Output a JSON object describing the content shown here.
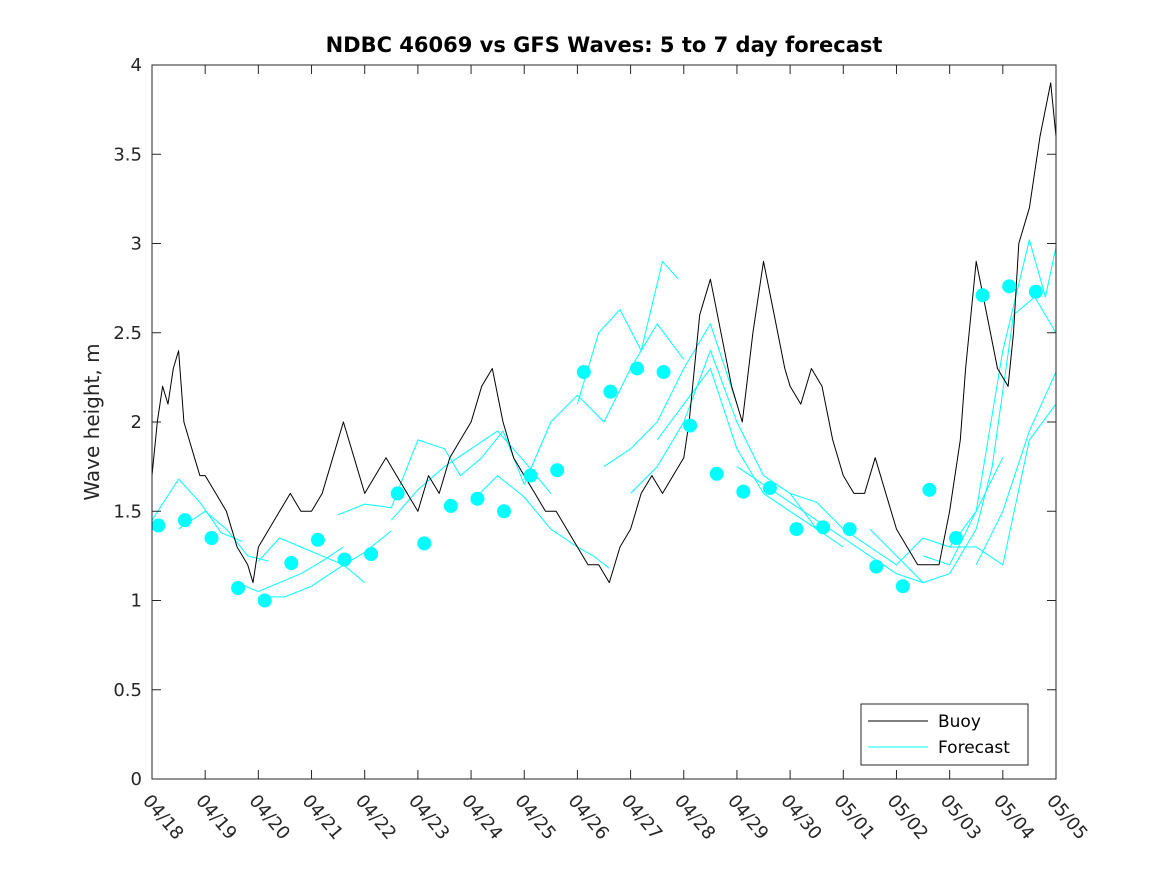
{
  "chart_data": {
    "type": "line",
    "title": "NDBC 46069 vs GFS Waves: 5 to 7 day forecast",
    "xlabel": "",
    "ylabel": "Wave height, m",
    "x_tick_labels": [
      "04/18",
      "04/19",
      "04/20",
      "04/21",
      "04/22",
      "04/23",
      "04/24",
      "04/25",
      "04/26",
      "04/27",
      "04/28",
      "04/29",
      "04/30",
      "05/01",
      "05/02",
      "05/03",
      "05/04",
      "05/05"
    ],
    "xlim_days": [
      0,
      17
    ],
    "ylim": [
      0,
      4
    ],
    "y_ticks": [
      0,
      0.5,
      1,
      1.5,
      2,
      2.5,
      3,
      3.5,
      4
    ],
    "y_tick_labels": [
      "0",
      "0.5",
      "1",
      "1.5",
      "2",
      "2.5",
      "3",
      "3.5",
      "4"
    ],
    "grid": false,
    "legend_position": "bottom-right",
    "colors": {
      "buoy": "#000000",
      "forecast": "#00ffff"
    },
    "series": [
      {
        "name": "Buoy",
        "style": "line",
        "x": [
          0,
          0.1,
          0.2,
          0.3,
          0.4,
          0.5,
          0.6,
          0.7,
          0.8,
          0.9,
          1.0,
          1.2,
          1.4,
          1.6,
          1.8,
          1.9,
          2.0,
          2.2,
          2.4,
          2.6,
          2.8,
          3.0,
          3.2,
          3.4,
          3.6,
          3.8,
          4.0,
          4.2,
          4.4,
          4.6,
          4.8,
          5.0,
          5.2,
          5.4,
          5.6,
          5.8,
          6.0,
          6.2,
          6.4,
          6.6,
          6.8,
          7.0,
          7.2,
          7.4,
          7.6,
          7.8,
          8.0,
          8.2,
          8.4,
          8.6,
          8.8,
          9.0,
          9.2,
          9.4,
          9.6,
          9.8,
          10.0,
          10.1,
          10.2,
          10.3,
          10.5,
          10.7,
          10.9,
          11.1,
          11.3,
          11.5,
          11.7,
          11.9,
          12.0,
          12.2,
          12.4,
          12.6,
          12.8,
          13.0,
          13.2,
          13.4,
          13.6,
          13.8,
          14.0,
          14.2,
          14.4,
          14.6,
          14.8,
          15.0,
          15.2,
          15.3,
          15.5,
          15.7,
          15.9,
          16.1,
          16.2,
          16.3
        ],
        "y": [
          1.7,
          2.0,
          2.2,
          2.1,
          2.3,
          2.4,
          2.0,
          1.9,
          1.8,
          1.7,
          1.7,
          1.6,
          1.5,
          1.3,
          1.2,
          1.1,
          1.3,
          1.4,
          1.5,
          1.6,
          1.5,
          1.5,
          1.6,
          1.8,
          2.0,
          1.8,
          1.6,
          1.7,
          1.8,
          1.7,
          1.6,
          1.5,
          1.7,
          1.6,
          1.8,
          1.9,
          2.0,
          2.2,
          2.3,
          2.0,
          1.8,
          1.7,
          1.6,
          1.5,
          1.5,
          1.4,
          1.3,
          1.2,
          1.2,
          1.1,
          1.3,
          1.4,
          1.6,
          1.7,
          1.6,
          1.7,
          1.8,
          2.0,
          2.3,
          2.6,
          2.8,
          2.5,
          2.2,
          2.0,
          2.5,
          2.9,
          2.6,
          2.3,
          2.2,
          2.1,
          2.3,
          2.2,
          1.9,
          1.7,
          1.6,
          1.6,
          1.8,
          1.6,
          1.4,
          1.3,
          1.2,
          1.2,
          1.2,
          1.5,
          1.9,
          2.3,
          2.9,
          2.6,
          2.3,
          2.2,
          2.5,
          3.0
        ]
      },
      {
        "name": "Buoy",
        "style": "line",
        "x": [
          16.3,
          16.5,
          16.7,
          16.9,
          17.0
        ],
        "y": [
          3.0,
          3.2,
          3.6,
          3.9,
          3.6
        ]
      },
      {
        "name": "Forecast",
        "style": "line",
        "x": [
          0.0,
          0.5,
          0.9,
          1.3,
          1.7
        ],
        "y": [
          1.45,
          1.68,
          1.55,
          1.38,
          1.33
        ]
      },
      {
        "name": "Forecast",
        "style": "line",
        "x": [
          0.5,
          1.0,
          1.4,
          1.8,
          2.2
        ],
        "y": [
          1.4,
          1.5,
          1.4,
          1.25,
          1.22
        ]
      },
      {
        "name": "Forecast",
        "style": "line",
        "x": [
          1.6,
          2.0,
          2.4,
          2.8,
          3.2,
          3.6
        ],
        "y": [
          1.1,
          1.05,
          1.1,
          1.15,
          1.22,
          1.3
        ]
      },
      {
        "name": "Forecast",
        "style": "line",
        "x": [
          2.0,
          2.4,
          2.8,
          3.2,
          3.6,
          4.0
        ],
        "y": [
          1.22,
          1.35,
          1.3,
          1.25,
          1.2,
          1.1
        ]
      },
      {
        "name": "Forecast",
        "style": "line",
        "x": [
          2.0,
          2.5,
          3.0,
          3.5,
          4.0,
          4.5
        ],
        "y": [
          1.02,
          1.02,
          1.08,
          1.18,
          1.27,
          1.39
        ]
      },
      {
        "name": "Forecast",
        "style": "line",
        "x": [
          3.5,
          4.0,
          4.5,
          5.0,
          5.5,
          5.8,
          6.2,
          6.6,
          7.0
        ],
        "y": [
          1.48,
          1.54,
          1.52,
          1.9,
          1.85,
          1.7,
          1.8,
          1.95,
          1.65
        ]
      },
      {
        "name": "Forecast",
        "style": "line",
        "x": [
          4.5,
          5.0,
          5.5,
          6.0,
          6.5,
          7.0,
          7.5
        ],
        "y": [
          1.45,
          1.62,
          1.75,
          1.85,
          1.95,
          1.78,
          1.6
        ]
      },
      {
        "name": "Forecast",
        "style": "line",
        "x": [
          6.0,
          6.5,
          7.0,
          7.5,
          8.0,
          8.3,
          8.6
        ],
        "y": [
          1.55,
          1.7,
          1.58,
          1.4,
          1.3,
          1.25,
          1.18
        ]
      },
      {
        "name": "Forecast",
        "style": "line",
        "x": [
          7.0,
          7.5,
          8.0,
          8.5,
          9.0,
          9.5,
          10.0
        ],
        "y": [
          1.65,
          2.0,
          2.15,
          2.0,
          2.3,
          2.55,
          2.35
        ]
      },
      {
        "name": "Forecast",
        "style": "line",
        "x": [
          8.0,
          8.4,
          8.8,
          9.2,
          9.6,
          9.9
        ],
        "y": [
          2.1,
          2.5,
          2.63,
          2.4,
          2.9,
          2.8
        ]
      },
      {
        "name": "Forecast",
        "style": "line",
        "x": [
          8.5,
          9.0,
          9.5,
          10.0,
          10.5,
          11.0
        ],
        "y": [
          1.75,
          1.85,
          2.0,
          2.3,
          2.55,
          2.1
        ]
      },
      {
        "name": "Forecast",
        "style": "line",
        "x": [
          9.0,
          9.5,
          10.0,
          10.5,
          11.0,
          11.5,
          12.0,
          12.5
        ],
        "y": [
          1.6,
          1.75,
          2.0,
          2.4,
          2.0,
          1.7,
          1.6,
          1.4
        ]
      },
      {
        "name": "Forecast",
        "style": "line",
        "x": [
          9.5,
          10.0,
          10.5,
          11.0,
          11.5,
          12.0,
          12.5,
          13.0
        ],
        "y": [
          1.9,
          2.1,
          2.3,
          1.85,
          1.6,
          1.5,
          1.4,
          1.3
        ]
      },
      {
        "name": "Forecast",
        "style": "line",
        "x": [
          11.0,
          11.5,
          12.0,
          12.5,
          13.0,
          13.5,
          14.0,
          14.5
        ],
        "y": [
          1.75,
          1.65,
          1.55,
          1.45,
          1.35,
          1.25,
          1.15,
          1.1
        ]
      },
      {
        "name": "Forecast",
        "style": "line",
        "x": [
          12.0,
          12.5,
          13.0,
          13.5,
          14.0,
          14.5,
          15.0,
          15.5,
          16.0
        ],
        "y": [
          1.6,
          1.55,
          1.4,
          1.3,
          1.2,
          1.35,
          1.3,
          1.5,
          1.8
        ]
      },
      {
        "name": "Forecast",
        "style": "line",
        "x": [
          13.5,
          14.0,
          14.5,
          15.0,
          15.5,
          15.8,
          16.2,
          16.6,
          17.0
        ],
        "y": [
          1.4,
          1.25,
          1.1,
          1.15,
          1.4,
          1.75,
          2.6,
          2.7,
          2.5
        ]
      },
      {
        "name": "Forecast",
        "style": "line",
        "x": [
          14.5,
          15.0,
          15.5,
          16.0,
          16.5,
          16.8,
          17.0
        ],
        "y": [
          1.25,
          1.2,
          1.5,
          2.4,
          3.02,
          2.7,
          2.98
        ]
      },
      {
        "name": "Forecast",
        "style": "line",
        "x": [
          15.0,
          15.5,
          16.0,
          16.5,
          17.0
        ],
        "y": [
          1.3,
          1.3,
          1.2,
          1.9,
          2.1
        ]
      },
      {
        "name": "Forecast",
        "style": "line",
        "x": [
          15.5,
          16.0,
          16.5,
          17.0
        ],
        "y": [
          1.2,
          1.5,
          1.95,
          2.28
        ]
      },
      {
        "name": "Forecast",
        "style": "markers",
        "x": [
          0.12,
          0.62,
          1.12,
          1.62,
          2.12,
          2.62,
          3.12,
          3.62,
          4.12,
          4.62,
          5.12,
          5.62,
          6.12,
          6.62,
          7.12,
          7.62,
          8.12,
          8.62,
          9.12,
          9.62,
          10.12,
          10.62,
          11.12,
          11.62,
          12.12,
          12.62,
          13.12,
          13.62,
          14.12,
          14.62,
          15.12,
          15.62,
          16.12,
          16.62
        ],
        "y": [
          1.42,
          1.45,
          1.35,
          1.07,
          1.0,
          1.21,
          1.34,
          1.23,
          1.26,
          1.6,
          1.32,
          1.53,
          1.57,
          1.5,
          1.7,
          1.73,
          2.28,
          2.17,
          2.3,
          2.28,
          1.98,
          1.71,
          1.61,
          1.63,
          1.4,
          1.41,
          1.4,
          1.19,
          1.08,
          1.62,
          1.35,
          2.71,
          2.76,
          2.73
        ]
      }
    ],
    "legend": [
      "Buoy",
      "Forecast"
    ]
  }
}
